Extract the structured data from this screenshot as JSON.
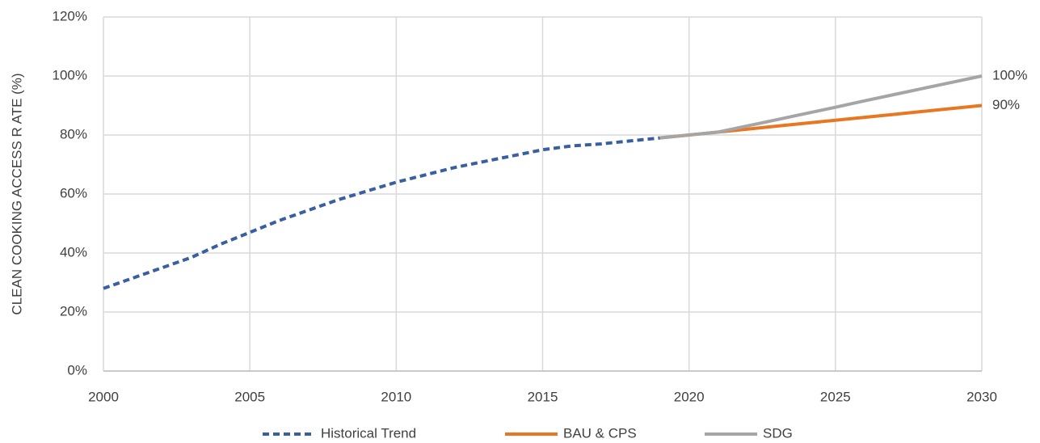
{
  "chart_data": {
    "type": "line",
    "y_label": "CLEAN COOKING ACCESS R ATE (%)",
    "x": [
      2000,
      2001,
      2002,
      2003,
      2004,
      2005,
      2006,
      2007,
      2008,
      2009,
      2010,
      2011,
      2012,
      2013,
      2014,
      2015,
      2016,
      2017,
      2018,
      2019,
      2020,
      2021,
      2022,
      2023,
      2024,
      2025,
      2026,
      2027,
      2028,
      2029,
      2030
    ],
    "xlim": [
      2000,
      2030
    ],
    "xticks": [
      2000,
      2005,
      2010,
      2015,
      2020,
      2025,
      2030
    ],
    "ylim": [
      0,
      120
    ],
    "yticks": [
      {
        "value": 0,
        "label": "0%"
      },
      {
        "value": 20,
        "label": "20%"
      },
      {
        "value": 40,
        "label": "40%"
      },
      {
        "value": 60,
        "label": "60%"
      },
      {
        "value": 80,
        "label": "80%"
      },
      {
        "value": 100,
        "label": "100%"
      },
      {
        "value": 120,
        "label": "120%"
      }
    ],
    "grid": true,
    "legend": "bottom",
    "series": [
      {
        "name": "Historical Trend",
        "color": "#3a5fa0",
        "dashed": true,
        "values": [
          28,
          31.5,
          35,
          38.5,
          43,
          47,
          51,
          54.5,
          58,
          61,
          64,
          66.5,
          69,
          71,
          73,
          75,
          76.3,
          77,
          78,
          79,
          null,
          null,
          null,
          null,
          null,
          null,
          null,
          null,
          null,
          null,
          null
        ]
      },
      {
        "name": "BAU & CPS",
        "color": "#e87722",
        "dashed": false,
        "values": [
          null,
          null,
          null,
          null,
          null,
          null,
          null,
          null,
          null,
          null,
          null,
          null,
          null,
          null,
          null,
          null,
          null,
          null,
          null,
          79,
          80,
          81,
          82,
          83,
          84,
          85,
          86,
          87,
          88,
          89,
          90
        ],
        "value_labels": [
          null,
          null,
          null,
          null,
          null,
          null,
          null,
          null,
          null,
          null,
          null,
          null,
          null,
          null,
          null,
          null,
          null,
          null,
          null,
          null,
          null,
          null,
          null,
          null,
          null,
          null,
          null,
          null,
          null,
          null,
          "90%"
        ]
      },
      {
        "name": "SDG",
        "color": "#a5a5a5",
        "dashed": false,
        "values": [
          null,
          null,
          null,
          null,
          null,
          null,
          null,
          null,
          null,
          null,
          null,
          null,
          null,
          null,
          null,
          null,
          null,
          null,
          null,
          79,
          80,
          81,
          83.1,
          85.2,
          87.3,
          89.4,
          91.6,
          93.7,
          95.8,
          97.9,
          100
        ],
        "value_labels": [
          null,
          null,
          null,
          null,
          null,
          null,
          null,
          null,
          null,
          null,
          null,
          null,
          null,
          null,
          null,
          null,
          null,
          null,
          null,
          null,
          null,
          null,
          null,
          null,
          null,
          null,
          null,
          null,
          null,
          null,
          "100%"
        ]
      }
    ]
  }
}
